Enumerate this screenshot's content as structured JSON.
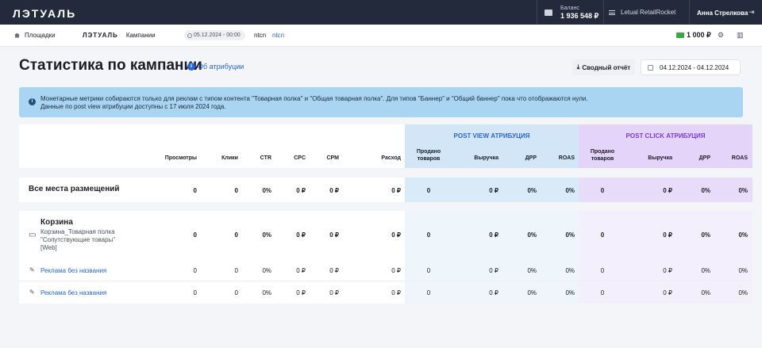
{
  "topbar": {
    "logo": "ЛЭТУАЛЬ",
    "balance_label": "Баланс",
    "balance_value": "1 936 548 ₽",
    "tenant": "Letual RetailRocket",
    "user": "Анна Стрелкова"
  },
  "subnav": {
    "platforms": "Площадки",
    "logo": "ЛЭТУАЛЬ",
    "campaigns": "Кампании",
    "date": "05.12.2024 - 00:00",
    "campaign_name": "ntcn",
    "campaign_link": "ntcn",
    "budget": "1 000 ₽"
  },
  "page": {
    "title": "Статистика по кампании",
    "attribution_link": "Об атрибуции",
    "report_button": "Сводный отчёт",
    "date_range": "04.12.2024 - 04.12.2024"
  },
  "banner": {
    "line1": "Монетарные метрики собираются только для реклам с типом контента \"Товарная полка\" и \"Общая товарная полка\". Для типов \"Баннер\" и \"Общий баннер\" пока что отображаются нули.",
    "line2": "Данные по post view атрибуции доступны с 17 июля 2024 года."
  },
  "table": {
    "group_pv": "POST VIEW АТРИБУЦИЯ",
    "group_pc": "POST CLICK АТРИБУЦИЯ",
    "headers": {
      "views": "Просмотры",
      "clicks": "Клики",
      "ctr": "CTR",
      "cpc": "CPC",
      "cpm": "CPM",
      "spend": "Расход",
      "sold_l1": "Продано",
      "sold_l2": "товаров",
      "revenue": "Выручка",
      "drr": "ДРР",
      "roas": "ROAS"
    },
    "summary": {
      "label": "Все места размещений",
      "views": "0",
      "clicks": "0",
      "ctr": "0%",
      "cpc": "0 ₽",
      "cpm": "0 ₽",
      "spend": "0 ₽",
      "pv_sold": "0",
      "pv_revenue": "0 ₽",
      "pv_drr": "0%",
      "pv_roas": "0%",
      "pc_sold": "0",
      "pc_revenue": "0 ₽",
      "pc_drr": "0%",
      "pc_roas": "0%"
    },
    "placement": {
      "title": "Корзина",
      "sub1": "Корзина_Товарная полка",
      "sub2": "\"Сопутствующие товары\"",
      "sub3": "[Web]",
      "views": "0",
      "clicks": "0",
      "ctr": "0%",
      "cpc": "0 ₽",
      "cpm": "0 ₽",
      "spend": "0 ₽",
      "pv_sold": "0",
      "pv_revenue": "0 ₽",
      "pv_drr": "0%",
      "pv_roas": "0%",
      "pc_sold": "0",
      "pc_revenue": "0 ₽",
      "pc_drr": "0%",
      "pc_roas": "0%"
    },
    "ads": [
      {
        "label": "Реклама без названия",
        "views": "0",
        "clicks": "0",
        "ctr": "0%",
        "cpc": "0 ₽",
        "cpm": "0 ₽",
        "spend": "0 ₽",
        "pv_sold": "0",
        "pv_revenue": "0 ₽",
        "pv_drr": "0%",
        "pv_roas": "0%",
        "pc_sold": "0",
        "pc_revenue": "0 ₽",
        "pc_drr": "0%",
        "pc_roas": "0%"
      },
      {
        "label": "Реклама без названия",
        "views": "0",
        "clicks": "0",
        "ctr": "0%",
        "cpc": "0 ₽",
        "cpm": "0 ₽",
        "spend": "0 ₽",
        "pv_sold": "0",
        "pv_revenue": "0 ₽",
        "pv_drr": "0%",
        "pv_roas": "0%",
        "pc_sold": "0",
        "pc_revenue": "0 ₽",
        "pc_drr": "0%",
        "pc_roas": "0%"
      }
    ]
  }
}
